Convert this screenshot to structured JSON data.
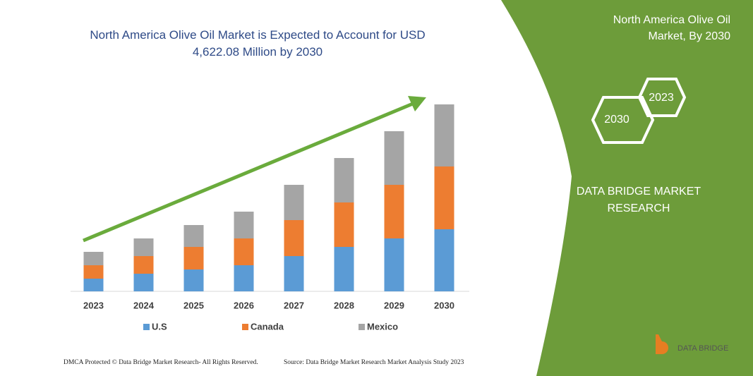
{
  "chart_data": {
    "type": "stacked-bar",
    "title": "North America Olive Oil Market is Expected to Account for USD 4,622.08 Million by 2030",
    "categories": [
      "2023",
      "2024",
      "2025",
      "2026",
      "2027",
      "2028",
      "2029",
      "2030"
    ],
    "series": [
      {
        "name": "U.S",
        "color": "#5b9bd5",
        "values": [
          18,
          25,
          31,
          37,
          50,
          63,
          75,
          88
        ]
      },
      {
        "name": "Canada",
        "color": "#ed7d31",
        "values": [
          19,
          25,
          32,
          38,
          51,
          63,
          76,
          89
        ]
      },
      {
        "name": "Mexico",
        "color": "#a5a5a5",
        "values": [
          19,
          25,
          31,
          38,
          50,
          63,
          76,
          88
        ]
      }
    ],
    "ylim": [
      0,
      265
    ],
    "grid": false
  },
  "panel": {
    "heading": "North America Olive Oil Market, By 2030",
    "badge_start": "2023",
    "badge_end": "2030",
    "brand": "DATA BRIDGE MARKET RESEARCH",
    "logo": "DATA BRIDGE"
  },
  "footer": {
    "left": "DMCA Protected © Data Bridge Market Research- All Rights Reserved.",
    "right": "Source: Data Bridge Market Research Market Analysis Study 2023"
  }
}
